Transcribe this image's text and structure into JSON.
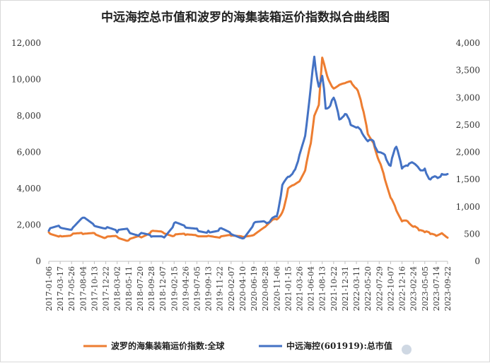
{
  "chart_data": {
    "type": "line",
    "title": "中远海控总市值和波罗的海集装箱运价指数拟合曲线图",
    "left_axis": {
      "ticks": [
        "0",
        "2,000",
        "4,000",
        "6,000",
        "8,000",
        "10,000",
        "12,000"
      ],
      "ylim": [
        0,
        12000
      ]
    },
    "right_axis": {
      "ticks": [
        "0",
        "500",
        "1,000",
        "1,500",
        "2,000",
        "2,500",
        "3,000",
        "3,500",
        "4,000"
      ],
      "ylim": [
        0,
        4000
      ]
    },
    "x_ticks": [
      "2017-01-06",
      "2017-03-17",
      "2017-05-26",
      "2017-08-04",
      "2017-10-13",
      "2017-12-22",
      "2018-03-02",
      "2018-05-11",
      "2018-07-20",
      "2018-09-28",
      "2018-12-07",
      "2019-02-15",
      "2019-04-26",
      "2019-07-05",
      "2019-09-13",
      "2019-11-22",
      "2020-02-07",
      "2020-04-10",
      "2020-06-19",
      "2020-08-28",
      "2020-11-06",
      "2021-01-15",
      "2021-03-26",
      "2021-06-04",
      "2021-08-13",
      "2021-10-22",
      "2021-12-31",
      "2022-03-11",
      "2022-05-20",
      "2022-07-29",
      "2022-10-07",
      "2022-12-16",
      "2023-02-24",
      "2023-05-05",
      "2023-07-14",
      "2023-09-22"
    ],
    "legend_position": "bottom",
    "grid": false,
    "series": [
      {
        "name": "波罗的海集装箱运价指数:全球",
        "axis": "left",
        "color": "#ED7D31",
        "x_index": [
          0,
          1,
          2,
          3,
          4,
          5,
          6,
          7,
          8,
          9,
          10,
          11,
          12,
          13,
          14,
          15,
          16,
          17,
          18,
          19,
          19.5,
          20,
          20.5,
          21,
          21.5,
          22,
          22.5,
          23,
          23.3,
          23.7,
          24,
          24.3,
          24.7,
          25,
          25.5,
          26,
          26.5,
          27,
          27.5,
          28,
          28.5,
          29,
          29.5,
          30,
          30.5,
          31,
          31.5,
          32,
          32.5,
          33,
          33.5,
          34,
          34.5,
          35
        ],
        "values": [
          1600,
          1400,
          1450,
          1500,
          1550,
          1300,
          1350,
          1150,
          1350,
          1650,
          1600,
          1400,
          1450,
          1400,
          1400,
          1300,
          1400,
          1350,
          1450,
          1900,
          2200,
          2300,
          2700,
          4000,
          4200,
          4400,
          5000,
          6500,
          8000,
          8600,
          11200,
          10500,
          9800,
          9500,
          9700,
          9800,
          9900,
          9500,
          8500,
          7000,
          6500,
          5500,
          4500,
          3500,
          2800,
          2200,
          2200,
          1900,
          1700,
          1600,
          1500,
          1400,
          1550,
          1300
        ]
      },
      {
        "name": "中远海控(601919):总市值",
        "axis": "right",
        "color": "#4472C4",
        "x_index": [
          0,
          1,
          2,
          3,
          4,
          5,
          6,
          7,
          8,
          9,
          10,
          11,
          12,
          13,
          14,
          15,
          16,
          17,
          18,
          19,
          19.5,
          20,
          20.5,
          21,
          21.5,
          22,
          22.5,
          23,
          23.3,
          23.7,
          24,
          24.3,
          24.7,
          25,
          25.5,
          26,
          26.5,
          27,
          27.5,
          28,
          28.5,
          29,
          29.5,
          30,
          30.5,
          31,
          31.5,
          32,
          32.5,
          33,
          33.5,
          34,
          34.5,
          35
        ],
        "values": [
          560,
          620,
          580,
          800,
          650,
          600,
          530,
          560,
          500,
          450,
          450,
          700,
          620,
          600,
          560,
          600,
          500,
          420,
          700,
          720,
          760,
          820,
          1400,
          1550,
          1650,
          1950,
          2300,
          3200,
          3750,
          3200,
          3400,
          2800,
          2850,
          3000,
          2600,
          2700,
          2500,
          2450,
          2350,
          2200,
          2200,
          2000,
          1950,
          1750,
          2100,
          1700,
          1750,
          1800,
          1700,
          1700,
          1500,
          1550,
          1600,
          1600
        ]
      }
    ]
  },
  "watermark": "雪球：青山隐士"
}
